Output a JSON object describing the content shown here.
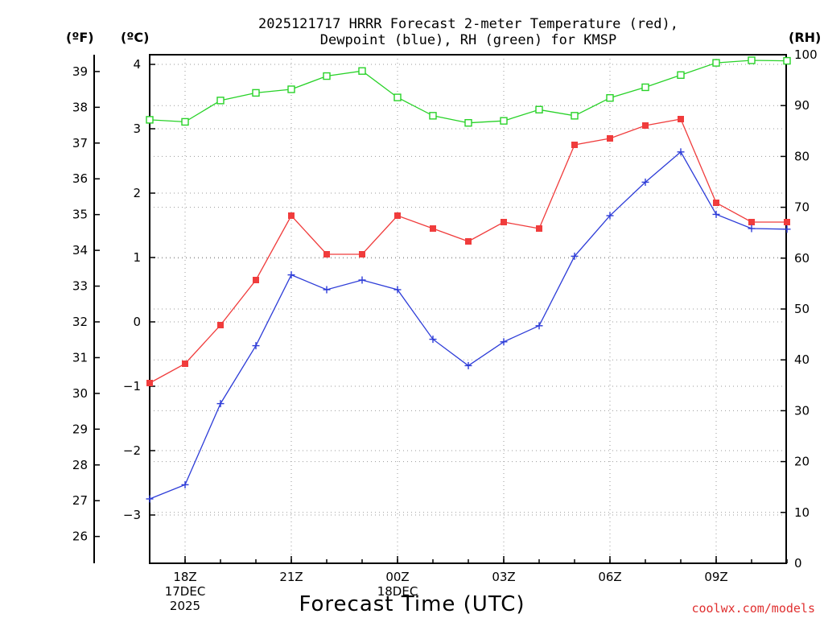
{
  "title": {
    "line1": "2025121717 HRRR Forecast 2-meter Temperature (red),",
    "line2": "Dewpoint (blue), RH (green) for KMSP"
  },
  "units": {
    "fahrenheit": "(ºF)",
    "celsius": "(ºC)",
    "rh": "(RH)"
  },
  "xlabel": "Forecast Time (UTC)",
  "credit": "coolwx.com/models",
  "colors": {
    "temperature": "#f03c3c",
    "dewpoint": "#2d3cd8",
    "rh": "#28d228"
  },
  "chart_data": {
    "type": "line",
    "title": "2025121717 HRRR Forecast 2-meter Temperature (red), Dewpoint (blue), RH (green) for KMSP",
    "xlabel": "Forecast Time (UTC)",
    "x": [
      "17Z 17DEC",
      "18Z 17DEC",
      "19Z 17DEC",
      "20Z 17DEC",
      "21Z 17DEC",
      "22Z 17DEC",
      "23Z 17DEC",
      "00Z 18DEC",
      "01Z 18DEC",
      "02Z 18DEC",
      "03Z 18DEC",
      "04Z 18DEC",
      "05Z 18DEC",
      "06Z 18DEC",
      "07Z 18DEC",
      "08Z 18DEC",
      "09Z 18DEC",
      "10Z 18DEC",
      "11Z 18DEC"
    ],
    "x_ticks": [
      {
        "index": 1,
        "lines": [
          "18Z",
          "17DEC",
          "2025"
        ]
      },
      {
        "index": 4,
        "lines": [
          "21Z"
        ]
      },
      {
        "index": 7,
        "lines": [
          "00Z",
          "18DEC"
        ]
      },
      {
        "index": 10,
        "lines": [
          "03Z"
        ]
      },
      {
        "index": 13,
        "lines": [
          "06Z"
        ]
      },
      {
        "index": 16,
        "lines": [
          "09Z"
        ]
      }
    ],
    "series": [
      {
        "axis": "celsius",
        "marker": "filled-square",
        "color": "#f03c3c",
        "values": [
          -0.95,
          -0.65,
          -0.05,
          0.65,
          1.65,
          1.05,
          1.05,
          1.65,
          1.45,
          1.25,
          1.55,
          1.45,
          2.75,
          2.85,
          3.05,
          3.15,
          1.85,
          1.55,
          1.55
        ]
      },
      {
        "axis": "celsius",
        "marker": "plus",
        "color": "#2d3cd8",
        "values": [
          -2.75,
          -2.53,
          -1.27,
          -0.37,
          0.73,
          0.5,
          0.65,
          0.5,
          -0.27,
          -0.68,
          -0.31,
          -0.06,
          1.02,
          1.65,
          2.17,
          2.64,
          1.67,
          1.45,
          1.44
        ]
      },
      {
        "axis": "rh",
        "marker": "open-square",
        "color": "#28d228",
        "values": [
          87.2,
          86.8,
          91.0,
          92.5,
          93.2,
          95.8,
          96.8,
          91.6,
          88.0,
          86.6,
          87.0,
          89.2,
          88.0,
          91.5,
          93.6,
          96.0,
          98.4,
          98.9,
          98.8
        ]
      }
    ],
    "y_left_fahrenheit": {
      "ticks": [
        26,
        27,
        28,
        29,
        30,
        31,
        32,
        33,
        34,
        35,
        36,
        37,
        38,
        39
      ]
    },
    "y_celsius": {
      "ticks": [
        -3,
        -2,
        -1,
        0,
        1,
        2,
        3,
        4
      ],
      "range": [
        -3.75,
        4.1
      ]
    },
    "y_right_rh": {
      "ticks": [
        0,
        10,
        20,
        30,
        40,
        50,
        60,
        70,
        80,
        90,
        100
      ],
      "range": [
        0,
        100
      ]
    },
    "grid": true,
    "legend": "none"
  }
}
